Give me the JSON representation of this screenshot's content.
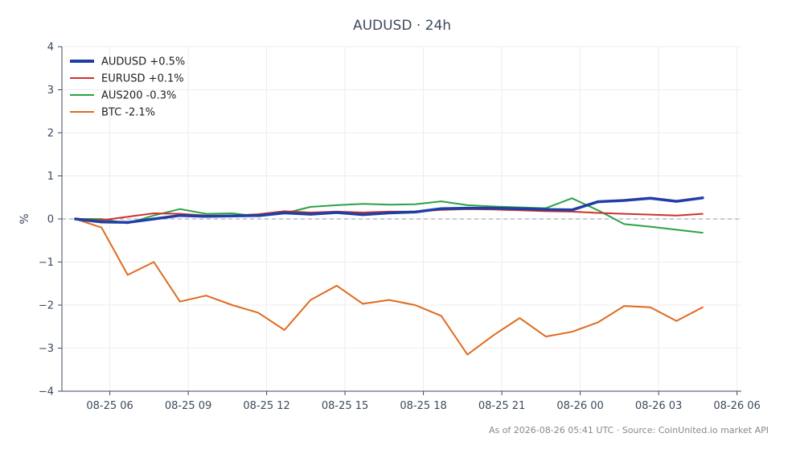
{
  "chart_data": {
    "type": "line",
    "title": "AUDUSD · 24h",
    "xlabel": "",
    "ylabel": "%",
    "ylim": [
      -4,
      4
    ],
    "y_ticks": [
      -4,
      -3,
      -2,
      -1,
      0,
      1,
      2,
      3,
      4
    ],
    "y_tick_labels": [
      "−4",
      "−3",
      "−2",
      "−1",
      "0",
      "1",
      "2",
      "3",
      "4"
    ],
    "x_ticks": [
      {
        "x": "2026-08-25 06:00",
        "label": "08-25 06"
      },
      {
        "x": "2026-08-25 09:00",
        "label": "08-25 09"
      },
      {
        "x": "2026-08-25 12:00",
        "label": "08-25 12"
      },
      {
        "x": "2026-08-25 15:00",
        "label": "08-25 15"
      },
      {
        "x": "2026-08-25 18:00",
        "label": "08-25 18"
      },
      {
        "x": "2026-08-25 21:00",
        "label": "08-25 21"
      },
      {
        "x": "2026-08-26 00:00",
        "label": "08-26 00"
      },
      {
        "x": "2026-08-26 03:00",
        "label": "08-26 03"
      },
      {
        "x": "2026-08-26 06:00",
        "label": "08-26 06"
      }
    ],
    "x_range": [
      "2026-08-25 04:10",
      "2026-08-26 06:10"
    ],
    "x": [
      "2026-08-25 04:41",
      "2026-08-25 05:41",
      "2026-08-25 06:41",
      "2026-08-25 07:41",
      "2026-08-25 08:41",
      "2026-08-25 09:41",
      "2026-08-25 10:41",
      "2026-08-25 11:41",
      "2026-08-25 12:41",
      "2026-08-25 13:41",
      "2026-08-25 14:41",
      "2026-08-25 15:41",
      "2026-08-25 16:41",
      "2026-08-25 17:41",
      "2026-08-25 18:41",
      "2026-08-25 19:41",
      "2026-08-25 20:41",
      "2026-08-25 21:41",
      "2026-08-25 22:41",
      "2026-08-25 23:41",
      "2026-08-26 00:41",
      "2026-08-26 01:41",
      "2026-08-26 02:41",
      "2026-08-26 03:41",
      "2026-08-26 04:41"
    ],
    "series": [
      {
        "name": "AUDUSD +0.5%",
        "color": "#1f3fa6",
        "width": "thick",
        "values": [
          0,
          -0.07,
          -0.08,
          0,
          0.08,
          0.06,
          0.07,
          0.08,
          0.14,
          0.11,
          0.15,
          0.1,
          0.14,
          0.16,
          0.24,
          0.25,
          0.25,
          0.24,
          0.22,
          0.21,
          0.4,
          0.43,
          0.48,
          0.41,
          0.49
        ]
      },
      {
        "name": "EURUSD +0.1%",
        "color": "#d0312d",
        "width": "normal",
        "values": [
          0,
          -0.03,
          0.05,
          0.13,
          0.12,
          0.08,
          0.08,
          0.11,
          0.18,
          0.15,
          0.17,
          0.15,
          0.17,
          0.17,
          0.21,
          0.23,
          0.22,
          0.2,
          0.18,
          0.17,
          0.14,
          0.12,
          0.1,
          0.08,
          0.12
        ]
      },
      {
        "name": "AUS200 -0.3%",
        "color": "#2ca245",
        "width": "normal",
        "values": [
          0,
          0,
          -0.1,
          0.08,
          0.23,
          0.12,
          0.13,
          0.06,
          0.13,
          0.28,
          0.32,
          0.35,
          0.33,
          0.34,
          0.41,
          0.32,
          0.29,
          0.27,
          0.25,
          0.48,
          0.2,
          -0.12,
          -0.18,
          -0.25,
          -0.32
        ]
      },
      {
        "name": "BTC -2.1%",
        "color": "#e06a1e",
        "width": "normal",
        "values": [
          0,
          -0.2,
          -1.3,
          -1.0,
          -1.92,
          -1.78,
          -2.0,
          -2.18,
          -2.58,
          -1.88,
          -1.55,
          -1.97,
          -1.88,
          -2.0,
          -2.25,
          -3.15,
          -2.7,
          -2.3,
          -2.73,
          -2.62,
          -2.4,
          -2.02,
          -2.05,
          -2.37,
          -2.05
        ]
      }
    ],
    "reference_line": {
      "y": 0,
      "style": "dashed",
      "color": "#8f9ab8"
    },
    "grid": true,
    "legend_position": "top-left",
    "footer": "As of 2026-08-26 05:41 UTC · Source: CoinUnited.io market API"
  }
}
